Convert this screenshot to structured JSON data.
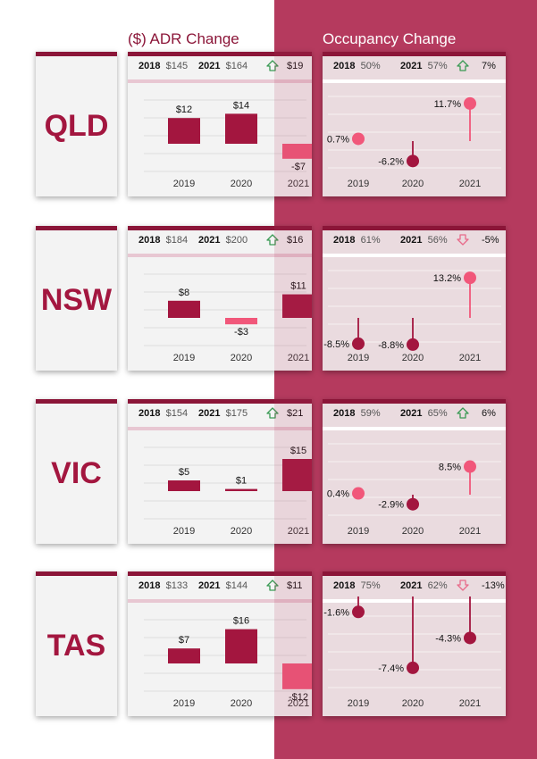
{
  "header": {
    "adr_title": "($) ADR Change",
    "occ_title": "Occupancy Change"
  },
  "colors": {
    "dark": "#a3163f",
    "pink": "#f1577a",
    "bg_right": "#b53a5e",
    "up_arrow": "#3a9a54",
    "down_arrow": "#e86b8a"
  },
  "years": [
    "2019",
    "2020",
    "2021"
  ],
  "rows": [
    {
      "state": "QLD",
      "adr": {
        "y2018_label": "2018",
        "y2018": "$145",
        "y2021_label": "2021",
        "y2021": "$164",
        "direction": "up",
        "change": "$19"
      },
      "occ": {
        "y2018_label": "2018",
        "y2018": "50%",
        "y2021_label": "2021",
        "y2021": "57%",
        "direction": "up",
        "change": "7%"
      }
    },
    {
      "state": "NSW",
      "adr": {
        "y2018_label": "2018",
        "y2018": "$184",
        "y2021_label": "2021",
        "y2021": "$200",
        "direction": "up",
        "change": "$16"
      },
      "occ": {
        "y2018_label": "2018",
        "y2018": "61%",
        "y2021_label": "2021",
        "y2021": "56%",
        "direction": "down",
        "change": "-5%"
      }
    },
    {
      "state": "VIC",
      "adr": {
        "y2018_label": "2018",
        "y2018": "$154",
        "y2021_label": "2021",
        "y2021": "$175",
        "direction": "up",
        "change": "$21"
      },
      "occ": {
        "y2018_label": "2018",
        "y2018": "59%",
        "y2021_label": "2021",
        "y2021": "65%",
        "direction": "up",
        "change": "6%"
      }
    },
    {
      "state": "TAS",
      "adr": {
        "y2018_label": "2018",
        "y2018": "$133",
        "y2021_label": "2021",
        "y2021": "$144",
        "direction": "up",
        "change": "$11"
      },
      "occ": {
        "y2018_label": "2018",
        "y2018": "75%",
        "y2021_label": "2021",
        "y2021": "62%",
        "direction": "down",
        "change": "-13%"
      }
    }
  ],
  "chart_data": [
    {
      "type": "bar",
      "state": "QLD",
      "categories": [
        "2019",
        "2020",
        "2021"
      ],
      "values": [
        12,
        14,
        -7
      ],
      "labels": [
        "$12",
        "$14",
        "-$7"
      ]
    },
    {
      "type": "scatter",
      "state": "QLD",
      "categories": [
        "2019",
        "2020",
        "2021"
      ],
      "values": [
        0.7,
        -6.2,
        11.7
      ],
      "labels": [
        "0.7%",
        "-6.2%",
        "11.7%"
      ]
    },
    {
      "type": "bar",
      "state": "NSW",
      "categories": [
        "2019",
        "2020",
        "2021"
      ],
      "values": [
        8,
        -3,
        11
      ],
      "labels": [
        "$8",
        "-$3",
        "$11"
      ]
    },
    {
      "type": "scatter",
      "state": "NSW",
      "categories": [
        "2019",
        "2020",
        "2021"
      ],
      "values": [
        -8.5,
        -8.8,
        13.2
      ],
      "labels": [
        "-8.5%",
        "-8.8%",
        "13.2%"
      ]
    },
    {
      "type": "bar",
      "state": "VIC",
      "categories": [
        "2019",
        "2020",
        "2021"
      ],
      "values": [
        5,
        1,
        15
      ],
      "labels": [
        "$5",
        "$1",
        "$15"
      ]
    },
    {
      "type": "scatter",
      "state": "VIC",
      "categories": [
        "2019",
        "2020",
        "2021"
      ],
      "values": [
        0.4,
        -2.9,
        8.5
      ],
      "labels": [
        "0.4%",
        "-2.9%",
        "8.5%"
      ]
    },
    {
      "type": "bar",
      "state": "TAS",
      "categories": [
        "2019",
        "2020",
        "2021"
      ],
      "values": [
        7,
        16,
        -12
      ],
      "labels": [
        "$7",
        "$16",
        "-$12"
      ]
    },
    {
      "type": "scatter",
      "state": "TAS",
      "categories": [
        "2019",
        "2020",
        "2021"
      ],
      "values": [
        -1.6,
        -7.4,
        -4.3
      ],
      "labels": [
        "-1.6%",
        "-7.4%",
        "-4.3%"
      ]
    }
  ]
}
